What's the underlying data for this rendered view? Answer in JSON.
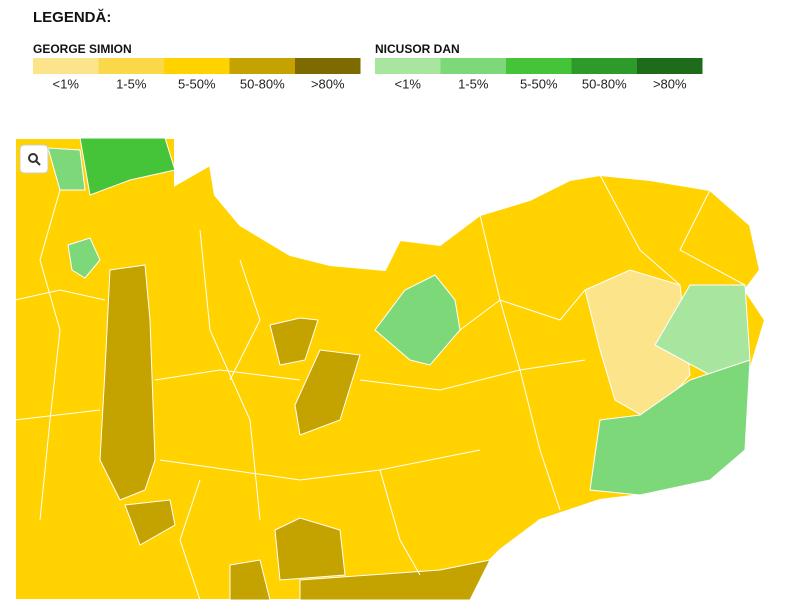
{
  "legend_title": "LEGENDĂ:",
  "legend_groups": [
    {
      "name": "GEORGE SIMION",
      "items": [
        {
          "label": "<1%",
          "color": "#fce48a"
        },
        {
          "label": "1-5%",
          "color": "#fbd84a"
        },
        {
          "label": "5-50%",
          "color": "#ffd200"
        },
        {
          "label": "50-80%",
          "color": "#c4a200"
        },
        {
          "label": ">80%",
          "color": "#7d6a00"
        }
      ]
    },
    {
      "name": "NICUSOR DAN",
      "items": [
        {
          "label": "<1%",
          "color": "#a8e6a0"
        },
        {
          "label": "1-5%",
          "color": "#7dd87a"
        },
        {
          "label": "5-50%",
          "color": "#45c43a"
        },
        {
          "label": "50-80%",
          "color": "#2e9a2a"
        },
        {
          "label": ">80%",
          "color": "#1e6b1a"
        }
      ]
    }
  ]
}
